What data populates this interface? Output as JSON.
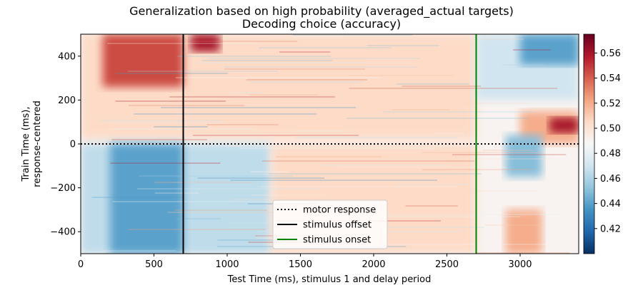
{
  "chart_data": {
    "type": "heatmap",
    "title": "Generalization based on high probability (averaged_actual targets)",
    "subtitle": "Decoding choice (accuracy)",
    "xlabel": "Test Time (ms), stimulus 1 and delay period",
    "ylabel_line1": "Train Time (ms),",
    "ylabel_line2": "response-centered",
    "xlim": [
      0,
      3400
    ],
    "ylim": [
      -500,
      500
    ],
    "x_ticks": [
      0,
      500,
      1000,
      1500,
      2000,
      2500,
      3000
    ],
    "x_tick_labels": [
      "0",
      "500",
      "1000",
      "1500",
      "2000",
      "2500",
      "3000"
    ],
    "y_ticks": [
      400,
      200,
      0,
      -200,
      -400
    ],
    "y_tick_labels": [
      "400",
      "200",
      "0",
      "−200",
      "−400"
    ],
    "colorbar": {
      "colormap": "RdBu_r",
      "range": [
        0.4,
        0.575
      ],
      "ticks": [
        0.56,
        0.54,
        0.52,
        0.5,
        0.48,
        0.46,
        0.44,
        0.42
      ],
      "tick_labels": [
        "0.56",
        "0.54",
        "0.52",
        "0.50",
        "0.48",
        "0.46",
        "0.44",
        "0.42"
      ]
    },
    "regions": [
      {
        "x": [
          0,
          3400
        ],
        "y": [
          -500,
          500
        ],
        "value": 0.49
      },
      {
        "x": [
          0,
          2700
        ],
        "y": [
          20,
          500
        ],
        "value": 0.505
      },
      {
        "x": [
          150,
          700
        ],
        "y": [
          260,
          500
        ],
        "value": 0.545
      },
      {
        "x": [
          750,
          950
        ],
        "y": [
          420,
          500
        ],
        "value": 0.56
      },
      {
        "x": [
          0,
          1300
        ],
        "y": [
          -500,
          0
        ],
        "value": 0.465
      },
      {
        "x": [
          200,
          700
        ],
        "y": [
          -500,
          0
        ],
        "value": 0.44
      },
      {
        "x": [
          1300,
          2700
        ],
        "y": [
          -500,
          0
        ],
        "value": 0.505
      },
      {
        "x": [
          2700,
          3400
        ],
        "y": [
          200,
          500
        ],
        "value": 0.47
      },
      {
        "x": [
          3000,
          3400
        ],
        "y": [
          360,
          500
        ],
        "value": 0.44
      },
      {
        "x": [
          3000,
          3400
        ],
        "y": [
          0,
          150
        ],
        "value": 0.52
      },
      {
        "x": [
          3200,
          3400
        ],
        "y": [
          50,
          120
        ],
        "value": 0.56
      },
      {
        "x": [
          2900,
          3150
        ],
        "y": [
          -150,
          40
        ],
        "value": 0.45
      },
      {
        "x": [
          2900,
          3150
        ],
        "y": [
          -500,
          -300
        ],
        "value": 0.52
      }
    ],
    "lines": [
      {
        "name": "motor response",
        "orientation": "horizontal",
        "value": 0,
        "color": "#000000",
        "style": "dotted"
      },
      {
        "name": "stimulus offset",
        "orientation": "vertical",
        "value": 700,
        "color": "#000000",
        "style": "solid"
      },
      {
        "name": "stimulus onset",
        "orientation": "vertical",
        "value": 2700,
        "color": "#008000",
        "style": "solid"
      }
    ],
    "legend": {
      "position": "lower-center",
      "entries": [
        "motor response",
        "stimulus offset",
        "stimulus onset"
      ]
    }
  }
}
